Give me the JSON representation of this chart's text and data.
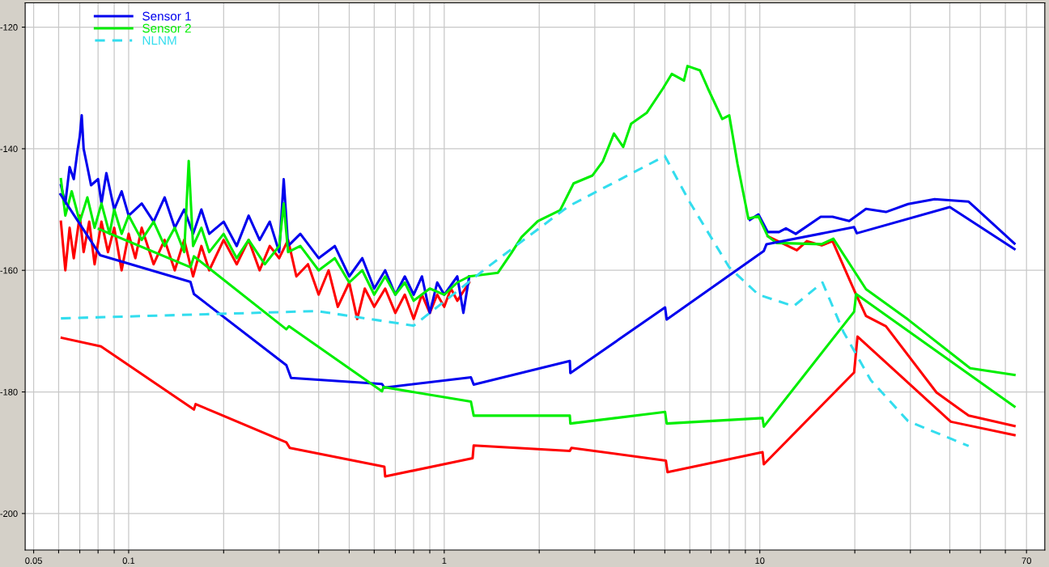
{
  "chart_data": {
    "type": "line",
    "log": "x",
    "grid": true,
    "legend": "top left",
    "xlim": [
      0.047,
      80
    ],
    "ylim": [
      -206,
      -116
    ],
    "xticks": [
      0.05,
      {
        "value": 0.06,
        "label": null
      },
      {
        "value": 0.07,
        "label": null
      },
      {
        "value": 0.08,
        "label": null
      },
      {
        "value": 0.09,
        "label": null
      },
      0.1,
      {
        "value": 0.2,
        "label": null
      },
      {
        "value": 0.3,
        "label": null
      },
      {
        "value": 0.4,
        "label": null
      },
      {
        "value": 0.5,
        "label": null
      },
      {
        "value": 0.6,
        "label": null
      },
      {
        "value": 0.7,
        "label": null
      },
      {
        "value": 0.8,
        "label": null
      },
      {
        "value": 0.9,
        "label": null
      },
      1,
      {
        "value": 2,
        "label": null
      },
      {
        "value": 3,
        "label": null
      },
      {
        "value": 4,
        "label": null
      },
      {
        "value": 5,
        "label": null
      },
      {
        "value": 6,
        "label": null
      },
      {
        "value": 7,
        "label": null
      },
      {
        "value": 8,
        "label": null
      },
      {
        "value": 9,
        "label": null
      },
      10,
      {
        "value": 20,
        "label": null
      },
      {
        "value": 30,
        "label": null
      },
      {
        "value": 40,
        "label": null
      },
      {
        "value": 50,
        "label": null
      },
      {
        "value": 60,
        "label": null
      },
      70
    ],
    "yticks": [
      -200,
      -180,
      -160,
      -140,
      -120
    ],
    "series": [
      {
        "color": "#ff0000",
        "line_style": "solid",
        "x": [
          0.061,
          0.063,
          0.065,
          0.067,
          0.07,
          0.072,
          0.075,
          0.078,
          0.082,
          0.086,
          0.09,
          0.095,
          0.1,
          0.105,
          0.11,
          0.12,
          0.13,
          0.14,
          0.15,
          0.16,
          0.17,
          0.18,
          0.2,
          0.22,
          0.24,
          0.26,
          0.28,
          0.3,
          0.32,
          0.34,
          0.37,
          0.4,
          0.43,
          0.46,
          0.5,
          0.53,
          0.56,
          0.6,
          0.65,
          0.7,
          0.75,
          0.8,
          0.85,
          0.9,
          0.95,
          1.0,
          1.05,
          1.1,
          1.2,
          3,
          10.6,
          13.1,
          14.1,
          15.7,
          17.0,
          20.0,
          21.7,
          25.1,
          36.3,
          45.9,
          64.1
        ],
        "values": [
          -152,
          -160,
          -153,
          -158,
          -151,
          -157,
          -152,
          -159,
          -152,
          -157,
          -153,
          -160,
          -154,
          -158,
          -153,
          -159,
          -155,
          -160,
          -155,
          -161,
          -156,
          -160,
          -155,
          -159,
          -155,
          -160,
          -156,
          -158,
          -155,
          -161,
          -159,
          -164,
          -160,
          -166,
          -162,
          -168,
          -163,
          -166,
          -163,
          -167,
          -164,
          -168,
          -164,
          -167,
          -164,
          -166,
          -163,
          -165,
          -162,
          null,
          -154.4,
          -156.7,
          -155.2,
          -155.9,
          -155.2,
          -163.5,
          -167.5,
          -169.2,
          -180.1,
          -183.9,
          -185.6
        ]
      },
      {
        "color": "#0000ee",
        "line_style": "solid",
        "x": [
          0.061,
          0.063,
          0.065,
          0.067,
          0.069,
          0.07,
          0.071,
          0.072,
          0.074,
          0.076,
          0.08,
          0.082,
          0.085,
          0.09,
          0.095,
          0.1,
          0.11,
          0.12,
          0.13,
          0.14,
          0.15,
          0.16,
          0.17,
          0.18,
          0.2,
          0.22,
          0.24,
          0.26,
          0.28,
          0.3,
          0.31,
          0.32,
          0.35,
          0.4,
          0.45,
          0.5,
          0.55,
          0.6,
          0.65,
          0.7,
          0.75,
          0.8,
          0.85,
          0.9,
          0.95,
          1.0,
          1.1,
          1.15,
          1.2,
          3,
          9.3,
          9.9,
          10.6,
          11.5,
          12.1,
          13.0,
          15.6,
          17.0,
          19.2,
          21.7,
          25.1,
          29.5,
          35.8,
          45.9,
          64.1
        ],
        "values": [
          -146,
          -149,
          -143,
          -145,
          -140,
          -138,
          -134.5,
          -140,
          -143,
          -146,
          -145,
          -149,
          -144,
          -150,
          -147,
          -151,
          -149,
          -152,
          -148,
          -153,
          -150,
          -154,
          -150,
          -154,
          -152,
          -156,
          -151,
          -155,
          -152,
          -157,
          -145,
          -156,
          -154,
          -158,
          -156,
          -161,
          -158,
          -163,
          -160,
          -164,
          -161,
          -164,
          -161,
          -167,
          -162,
          -164,
          -161,
          -167,
          -161,
          null,
          -151.7,
          -150.8,
          -153.7,
          -153.7,
          -153.1,
          -154.0,
          -151.2,
          -151.2,
          -151.9,
          -149.9,
          -150.4,
          -149.1,
          -148.3,
          -148.7,
          -155.6
        ]
      },
      {
        "color": "#00ee00",
        "line_style": "solid",
        "x": [
          0.061,
          0.063,
          0.066,
          0.07,
          0.074,
          0.078,
          0.082,
          0.087,
          0.09,
          0.095,
          0.1,
          0.11,
          0.12,
          0.13,
          0.14,
          0.15,
          0.155,
          0.16,
          0.17,
          0.18,
          0.2,
          0.22,
          0.24,
          0.27,
          0.3,
          0.31,
          0.32,
          0.35,
          0.4,
          0.45,
          0.5,
          0.55,
          0.6,
          0.65,
          0.7,
          0.75,
          0.8,
          0.9,
          1.0,
          1.1,
          1.2,
          1.48,
          1.63,
          1.76,
          1.98,
          2.33,
          2.57,
          2.95,
          3.18,
          3.45,
          3.69,
          3.91,
          4.38,
          4.93,
          5.26,
          5.75,
          5.9,
          6.46,
          6.85,
          7.6,
          8.0,
          8.5,
          9.2,
          9.9,
          10.6,
          11.3,
          15.7,
          17.1,
          21.7,
          29.5,
          46.4,
          64.1
        ],
        "values": [
          -145,
          -151,
          -147,
          -152,
          -148,
          -153,
          -149,
          -154,
          -150,
          -154,
          -151,
          -155,
          -152,
          -156,
          -153,
          -157,
          -142,
          -156,
          -153,
          -157,
          -154,
          -158,
          -155,
          -159,
          -156,
          -149,
          -157,
          -156,
          -160,
          -158,
          -162,
          -160,
          -164,
          -161,
          -164,
          -162,
          -165,
          -163,
          -164,
          -162,
          -161,
          -160.4,
          -157.2,
          -154.5,
          -151.9,
          -150.1,
          -145.7,
          -144.4,
          -142.1,
          -137.5,
          -139.7,
          -135.9,
          -134.1,
          -130.1,
          -127.7,
          -128.8,
          -126.4,
          -127.1,
          -130.1,
          -135.1,
          -134.5,
          -142.5,
          -151.5,
          -151.1,
          -154.4,
          -155.5,
          -155.7,
          -154.8,
          -163.1,
          -168.1,
          -176.1,
          -177.2
        ]
      },
      {
        "color": "#ff0000",
        "line_style": "solid",
        "x": [
          0.0614,
          0.0817,
          0.161,
          0.163,
          0.316,
          0.324,
          0.646,
          0.65,
          1.23,
          1.24,
          2.5,
          2.53,
          5.04,
          5.1,
          10.2,
          10.3,
          19.9,
          20.4,
          40.3,
          64.1
        ],
        "values": [
          -171.1,
          -172.5,
          -182.9,
          -182.0,
          -188.3,
          -189.2,
          -192.3,
          -193.9,
          -190.9,
          -188.8,
          -189.7,
          -189.2,
          -191.3,
          -193.2,
          -189.9,
          -191.9,
          -176.8,
          -170.9,
          -184.9,
          -187.1
        ]
      },
      {
        "name": "Sensor 1",
        "color": "#0000ee",
        "line_style": "solid",
        "x": [
          0.0608,
          0.0812,
          0.157,
          0.161,
          0.316,
          0.327,
          0.635,
          0.646,
          1.215,
          1.24,
          2.5,
          2.51,
          5.01,
          5.07,
          10.3,
          10.5,
          19.9,
          20.3,
          40.0,
          64.1
        ],
        "values": [
          -147.5,
          -157.5,
          -161.9,
          -163.9,
          -175.6,
          -177.7,
          -178.7,
          -179.3,
          -177.6,
          -178.8,
          -174.9,
          -176.9,
          -166.1,
          -168.1,
          -156.8,
          -155.7,
          -152.9,
          -153.9,
          -149.6,
          -156.5
        ]
      },
      {
        "name": "Sensor 2",
        "color": "#00ee00",
        "line_style": "solid",
        "x": [
          0.0805,
          0.157,
          0.161,
          0.316,
          0.322,
          0.635,
          0.642,
          1.215,
          1.24,
          2.5,
          2.51,
          5.01,
          5.07,
          10.2,
          10.3,
          19.9,
          20.2,
          64.1
        ],
        "values": [
          -153.2,
          -159.5,
          -157.7,
          -169.7,
          -169.2,
          -179.9,
          -179.2,
          -181.6,
          -183.9,
          -183.9,
          -185.2,
          -183.3,
          -185.2,
          -184.3,
          -185.7,
          -166.8,
          -163.9,
          -182.4
        ]
      },
      {
        "name": "NLNM",
        "color": "#33ddee",
        "line_style": "dashed",
        "x": [
          0.061,
          0.396,
          0.8,
          1.37,
          2.47,
          5.0,
          6.0,
          8.0,
          9.9,
          12.8,
          15.8,
          18.4,
          22.5,
          29.5,
          45.9
        ],
        "values": [
          -167.9,
          -166.7,
          -169.1,
          -159.5,
          -149.5,
          -141.2,
          -148.8,
          -159.5,
          -164,
          -165.9,
          -162,
          -170.1,
          -178.1,
          -184.8,
          -188.9
        ]
      }
    ]
  }
}
